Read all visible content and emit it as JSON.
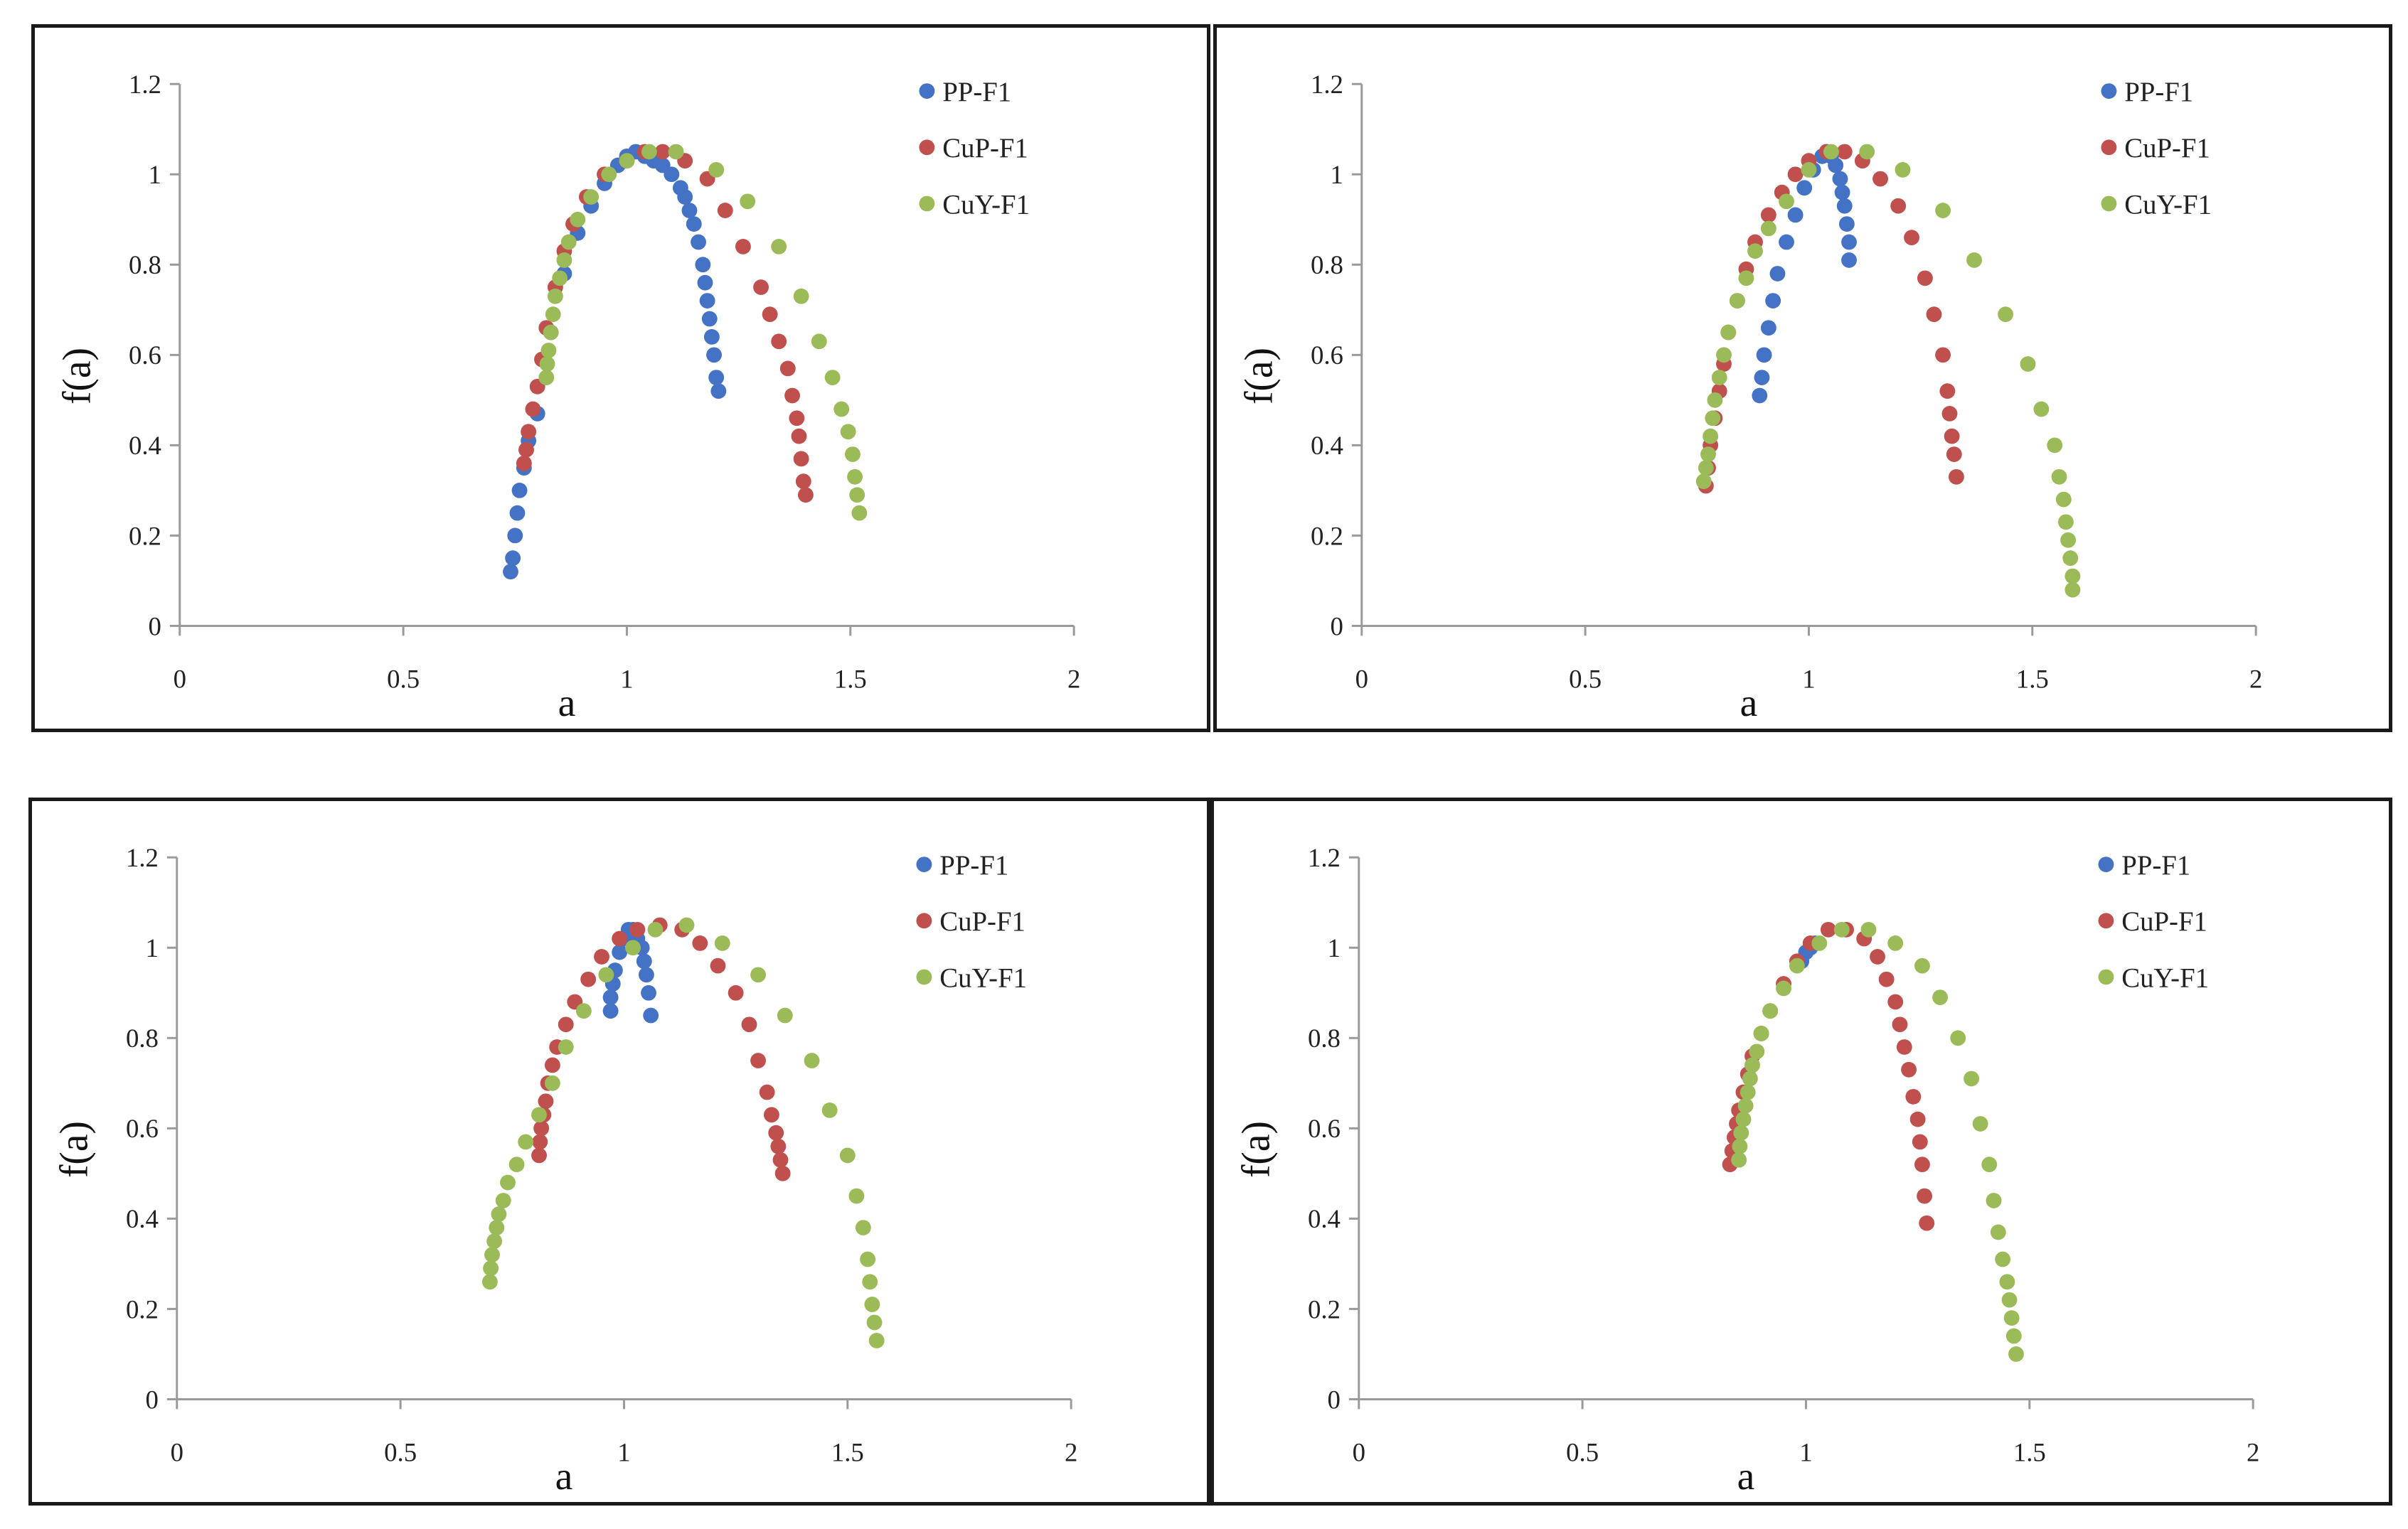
{
  "colors": {
    "PP-F1": "#4472C4",
    "CuP-F1": "#C0504D",
    "CuY-F1": "#9BBB59",
    "axis": "#9a9a9a",
    "text": "#222222"
  },
  "legend_position": "top-right",
  "chart_data": [
    {
      "type": "scatter",
      "xlabel": "a",
      "ylabel": "f(a)",
      "xlim": [
        0,
        2
      ],
      "ylim": [
        0,
        1.2
      ],
      "xticks": [
        "0",
        "0.5",
        "1",
        "1.5",
        "2"
      ],
      "yticks": [
        "0",
        "0.2",
        "0.4",
        "0.6",
        "0.8",
        "1",
        "1.2"
      ],
      "grid": false,
      "series": [
        {
          "name": "PP-F1",
          "x": [
            0.74,
            0.745,
            0.75,
            0.755,
            0.76,
            0.77,
            0.78,
            0.8,
            0.83,
            0.86,
            0.89,
            0.92,
            0.95,
            0.98,
            1.0,
            1.02,
            1.04,
            1.06,
            1.08,
            1.1,
            1.12,
            1.13,
            1.14,
            1.15,
            1.16,
            1.17,
            1.175,
            1.18,
            1.185,
            1.19,
            1.195,
            1.2,
            1.205
          ],
          "y": [
            0.12,
            0.15,
            0.2,
            0.25,
            0.3,
            0.35,
            0.41,
            0.47,
            0.65,
            0.78,
            0.87,
            0.93,
            0.98,
            1.02,
            1.04,
            1.05,
            1.04,
            1.03,
            1.02,
            1.0,
            0.97,
            0.95,
            0.92,
            0.89,
            0.85,
            0.8,
            0.76,
            0.72,
            0.68,
            0.64,
            0.6,
            0.55,
            0.52
          ]
        },
        {
          "name": "CuP-F1",
          "x": [
            0.77,
            0.775,
            0.78,
            0.79,
            0.8,
            0.81,
            0.82,
            0.84,
            0.86,
            0.88,
            0.91,
            0.95,
            1.0,
            1.04,
            1.08,
            1.13,
            1.18,
            1.22,
            1.26,
            1.3,
            1.32,
            1.34,
            1.36,
            1.37,
            1.38,
            1.385,
            1.39,
            1.395,
            1.4
          ],
          "y": [
            0.36,
            0.39,
            0.43,
            0.48,
            0.53,
            0.59,
            0.66,
            0.75,
            0.83,
            0.89,
            0.95,
            1.0,
            1.03,
            1.05,
            1.05,
            1.03,
            0.99,
            0.92,
            0.84,
            0.75,
            0.69,
            0.63,
            0.57,
            0.51,
            0.46,
            0.42,
            0.37,
            0.32,
            0.29
          ]
        },
        {
          "name": "CuY-F1",
          "x": [
            0.82,
            0.822,
            0.825,
            0.83,
            0.835,
            0.84,
            0.85,
            0.86,
            0.87,
            0.89,
            0.92,
            0.96,
            1.0,
            1.05,
            1.11,
            1.2,
            1.27,
            1.34,
            1.39,
            1.43,
            1.46,
            1.48,
            1.495,
            1.505,
            1.51,
            1.515,
            1.52
          ],
          "y": [
            0.55,
            0.58,
            0.61,
            0.65,
            0.69,
            0.73,
            0.77,
            0.81,
            0.85,
            0.9,
            0.95,
            1.0,
            1.03,
            1.05,
            1.05,
            1.01,
            0.94,
            0.84,
            0.73,
            0.63,
            0.55,
            0.48,
            0.43,
            0.38,
            0.33,
            0.29,
            0.25
          ]
        }
      ]
    },
    {
      "type": "scatter",
      "xlabel": "a",
      "ylabel": "f(a)",
      "xlim": [
        0,
        2
      ],
      "ylim": [
        0,
        1.2
      ],
      "xticks": [
        "0",
        "0.5",
        "1",
        "1.5",
        "2"
      ],
      "yticks": [
        "0",
        "0.2",
        "0.4",
        "0.6",
        "0.8",
        "1",
        "1.2"
      ],
      "grid": false,
      "series": [
        {
          "name": "PP-F1",
          "x": [
            0.89,
            0.895,
            0.9,
            0.91,
            0.92,
            0.93,
            0.95,
            0.97,
            0.99,
            1.01,
            1.03,
            1.04,
            1.05,
            1.06,
            1.07,
            1.075,
            1.08,
            1.085,
            1.09,
            1.09
          ],
          "y": [
            0.51,
            0.55,
            0.6,
            0.66,
            0.72,
            0.78,
            0.85,
            0.91,
            0.97,
            1.01,
            1.04,
            1.05,
            1.04,
            1.02,
            0.99,
            0.96,
            0.93,
            0.89,
            0.85,
            0.81
          ]
        },
        {
          "name": "CuP-F1",
          "x": [
            0.77,
            0.775,
            0.78,
            0.79,
            0.8,
            0.81,
            0.82,
            0.84,
            0.86,
            0.88,
            0.91,
            0.94,
            0.97,
            1.0,
            1.04,
            1.08,
            1.12,
            1.16,
            1.2,
            1.23,
            1.26,
            1.28,
            1.3,
            1.31,
            1.315,
            1.32,
            1.325,
            1.33
          ],
          "y": [
            0.31,
            0.35,
            0.4,
            0.46,
            0.52,
            0.58,
            0.65,
            0.72,
            0.79,
            0.85,
            0.91,
            0.96,
            1.0,
            1.03,
            1.05,
            1.05,
            1.03,
            0.99,
            0.93,
            0.86,
            0.77,
            0.69,
            0.6,
            0.52,
            0.47,
            0.42,
            0.38,
            0.33
          ]
        },
        {
          "name": "CuY-F1",
          "x": [
            0.765,
            0.77,
            0.775,
            0.78,
            0.785,
            0.79,
            0.8,
            0.81,
            0.82,
            0.84,
            0.86,
            0.88,
            0.91,
            0.95,
            1.0,
            1.05,
            1.13,
            1.21,
            1.3,
            1.37,
            1.44,
            1.49,
            1.52,
            1.55,
            1.56,
            1.57,
            1.575,
            1.58,
            1.585,
            1.59,
            1.59
          ],
          "y": [
            0.32,
            0.35,
            0.38,
            0.42,
            0.46,
            0.5,
            0.55,
            0.6,
            0.65,
            0.72,
            0.77,
            0.83,
            0.88,
            0.94,
            1.01,
            1.05,
            1.05,
            1.01,
            0.92,
            0.81,
            0.69,
            0.58,
            0.48,
            0.4,
            0.33,
            0.28,
            0.23,
            0.19,
            0.15,
            0.11,
            0.08
          ]
        }
      ]
    },
    {
      "type": "scatter",
      "xlabel": "a",
      "ylabel": "f(a)",
      "xlim": [
        0,
        2
      ],
      "ylim": [
        0,
        1.2
      ],
      "xticks": [
        "0",
        "0.5",
        "1",
        "1.5",
        "2"
      ],
      "yticks": [
        "0",
        "0.2",
        "0.4",
        "0.6",
        "0.8",
        "1",
        "1.2"
      ],
      "grid": false,
      "series": [
        {
          "name": "PP-F1",
          "x": [
            0.97,
            0.97,
            0.975,
            0.98,
            0.99,
            1.0,
            1.01,
            1.02,
            1.03,
            1.04,
            1.045,
            1.05,
            1.055,
            1.06
          ],
          "y": [
            0.86,
            0.89,
            0.92,
            0.95,
            0.99,
            1.02,
            1.04,
            1.04,
            1.02,
            1.0,
            0.97,
            0.94,
            0.9,
            0.85
          ]
        },
        {
          "name": "CuP-F1",
          "x": [
            0.81,
            0.812,
            0.815,
            0.82,
            0.825,
            0.83,
            0.84,
            0.85,
            0.87,
            0.89,
            0.92,
            0.95,
            0.99,
            1.03,
            1.08,
            1.13,
            1.17,
            1.21,
            1.25,
            1.28,
            1.3,
            1.32,
            1.33,
            1.34,
            1.345,
            1.35,
            1.355
          ],
          "y": [
            0.54,
            0.57,
            0.6,
            0.63,
            0.66,
            0.7,
            0.74,
            0.78,
            0.83,
            0.88,
            0.93,
            0.98,
            1.02,
            1.04,
            1.05,
            1.04,
            1.01,
            0.96,
            0.9,
            0.83,
            0.75,
            0.68,
            0.63,
            0.59,
            0.56,
            0.53,
            0.5
          ]
        },
        {
          "name": "CuY-F1",
          "x": [
            0.7,
            0.702,
            0.705,
            0.71,
            0.715,
            0.72,
            0.73,
            0.74,
            0.76,
            0.78,
            0.81,
            0.84,
            0.87,
            0.91,
            0.96,
            1.02,
            1.07,
            1.14,
            1.22,
            1.3,
            1.36,
            1.42,
            1.46,
            1.5,
            1.52,
            1.535,
            1.545,
            1.55,
            1.555,
            1.56,
            1.565
          ],
          "y": [
            0.26,
            0.29,
            0.32,
            0.35,
            0.38,
            0.41,
            0.44,
            0.48,
            0.52,
            0.57,
            0.63,
            0.7,
            0.78,
            0.86,
            0.94,
            1.0,
            1.04,
            1.05,
            1.01,
            0.94,
            0.85,
            0.75,
            0.64,
            0.54,
            0.45,
            0.38,
            0.31,
            0.26,
            0.21,
            0.17,
            0.13
          ]
        }
      ]
    },
    {
      "type": "scatter",
      "xlabel": "a",
      "ylabel": "f(a)",
      "xlim": [
        0,
        2
      ],
      "ylim": [
        0,
        1.2
      ],
      "xticks": [
        "0",
        "0.5",
        "1",
        "1.5",
        "2"
      ],
      "yticks": [
        "0",
        "0.2",
        "0.4",
        "0.6",
        "0.8",
        "1",
        "1.2"
      ],
      "grid": false,
      "series": [
        {
          "name": "PP-F1",
          "x": [
            0.99,
            1.0,
            1.01,
            1.02
          ],
          "y": [
            0.97,
            0.99,
            1.0,
            1.01
          ]
        },
        {
          "name": "CuP-F1",
          "x": [
            0.83,
            0.835,
            0.84,
            0.845,
            0.85,
            0.86,
            0.87,
            0.88,
            0.9,
            0.92,
            0.95,
            0.98,
            1.01,
            1.05,
            1.09,
            1.13,
            1.16,
            1.18,
            1.2,
            1.21,
            1.22,
            1.23,
            1.24,
            1.25,
            1.255,
            1.26,
            1.265,
            1.27
          ],
          "y": [
            0.52,
            0.55,
            0.58,
            0.61,
            0.64,
            0.68,
            0.72,
            0.76,
            0.81,
            0.86,
            0.92,
            0.97,
            1.01,
            1.04,
            1.04,
            1.02,
            0.98,
            0.93,
            0.88,
            0.83,
            0.78,
            0.73,
            0.67,
            0.62,
            0.57,
            0.52,
            0.45,
            0.39
          ]
        },
        {
          "name": "CuY-F1",
          "x": [
            0.85,
            0.852,
            0.855,
            0.86,
            0.865,
            0.87,
            0.875,
            0.88,
            0.89,
            0.9,
            0.92,
            0.95,
            0.98,
            1.03,
            1.08,
            1.14,
            1.2,
            1.26,
            1.3,
            1.34,
            1.37,
            1.39,
            1.41,
            1.42,
            1.43,
            1.44,
            1.45,
            1.455,
            1.46,
            1.465,
            1.47
          ],
          "y": [
            0.53,
            0.56,
            0.59,
            0.62,
            0.65,
            0.68,
            0.71,
            0.74,
            0.77,
            0.81,
            0.86,
            0.91,
            0.96,
            1.01,
            1.04,
            1.04,
            1.01,
            0.96,
            0.89,
            0.8,
            0.71,
            0.61,
            0.52,
            0.44,
            0.37,
            0.31,
            0.26,
            0.22,
            0.18,
            0.14,
            0.1
          ]
        }
      ]
    }
  ]
}
